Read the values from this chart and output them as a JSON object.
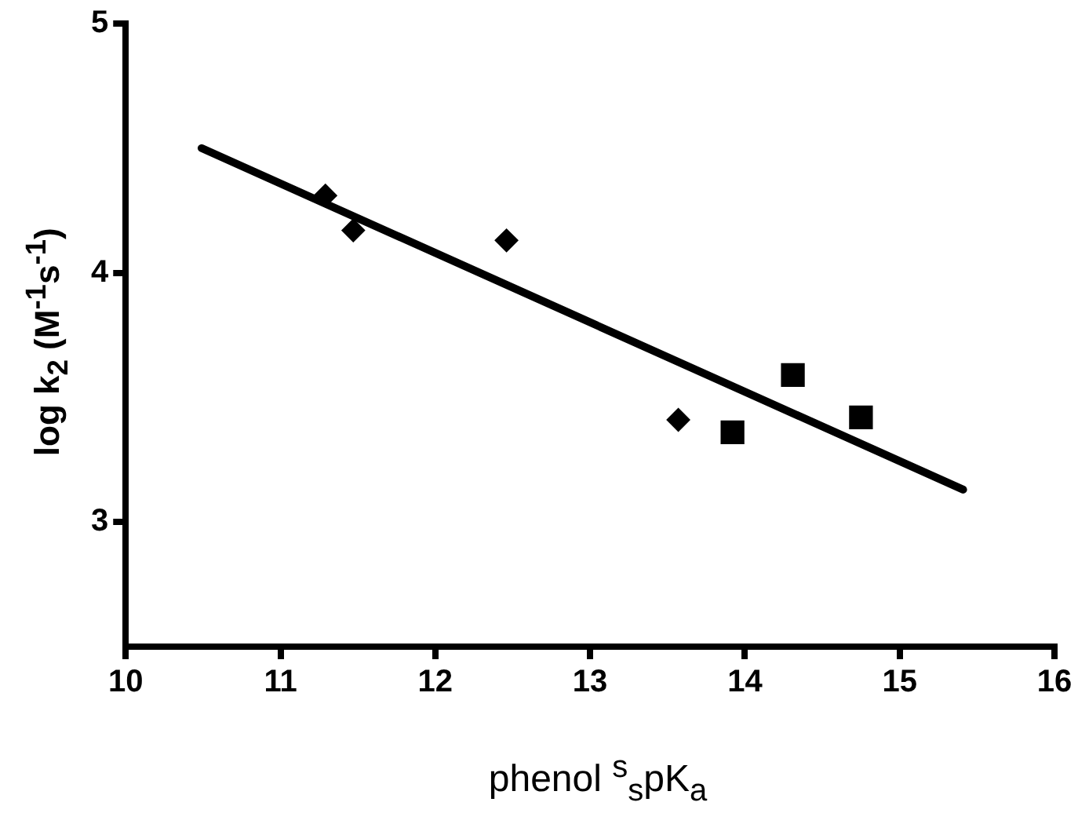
{
  "chart_data": {
    "type": "scatter",
    "xlabel": "phenol $^{s}$$_{s}$pK$_{a}$",
    "ylabel": "log k$_{2}$ (M$^{-1}$s$^{-1}$)",
    "xlim": [
      10,
      16
    ],
    "xticks": [
      10,
      11,
      12,
      13,
      14,
      15,
      16
    ],
    "ylim": [
      2.5,
      5
    ],
    "yticks": [
      3,
      4,
      5
    ],
    "grid": false,
    "legend": false,
    "series": [
      {
        "color": "#000000",
        "marker": "diamond",
        "x": [
          11.29,
          11.47,
          12.46
        ],
        "values": [
          4.31,
          4.17,
          4.13
        ]
      },
      {
        "color": "#000000",
        "marker": "diamond",
        "x": [
          13.57
        ],
        "values": [
          3.41
        ]
      },
      {
        "color": "#000000",
        "marker": "square",
        "x": [
          13.92,
          14.31,
          14.75
        ],
        "values": [
          3.36,
          3.59,
          3.42
        ]
      },
      {
        "type": "line",
        "color": "#000000",
        "marker": "none",
        "x": [
          10.49,
          15.41
        ],
        "values": [
          4.5,
          3.13
        ]
      }
    ]
  }
}
